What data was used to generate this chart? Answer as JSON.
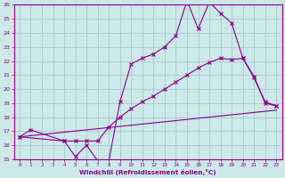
{
  "xlabel": "Windchill (Refroidissement éolien,°C)",
  "bg_color": "#cce8e8",
  "line_color": "#880088",
  "grid_color": "#aacccc",
  "xlim": [
    -0.5,
    23.5
  ],
  "ylim": [
    15,
    26
  ],
  "xticks": [
    0,
    1,
    2,
    3,
    4,
    5,
    6,
    7,
    8,
    9,
    10,
    11,
    12,
    13,
    14,
    15,
    16,
    17,
    18,
    19,
    20,
    21,
    22,
    23
  ],
  "yticks": [
    15,
    16,
    17,
    18,
    19,
    20,
    21,
    22,
    23,
    24,
    25,
    26
  ],
  "line1_x": [
    0,
    1,
    4,
    5,
    6,
    7,
    8,
    9,
    10,
    11,
    12,
    13,
    14,
    15,
    16,
    17,
    18,
    19,
    20,
    21,
    22,
    23
  ],
  "line1_y": [
    16.6,
    17.1,
    16.3,
    15.2,
    16.0,
    14.9,
    14.9,
    19.1,
    21.8,
    22.2,
    22.5,
    23.0,
    23.8,
    26.3,
    24.3,
    26.2,
    25.4,
    24.7,
    22.2,
    20.8,
    19.1,
    18.8
  ],
  "line2_x": [
    0,
    4,
    5,
    6,
    7,
    8,
    9,
    10,
    11,
    12,
    13,
    14,
    15,
    16,
    17,
    18,
    19,
    20,
    21,
    22,
    23
  ],
  "line2_y": [
    16.6,
    16.3,
    16.3,
    16.3,
    16.3,
    17.3,
    18.0,
    18.6,
    19.1,
    19.5,
    20.0,
    20.5,
    21.0,
    21.5,
    21.9,
    22.2,
    22.1,
    22.2,
    20.9,
    19.0,
    18.8
  ],
  "line3_x": [
    0,
    23
  ],
  "line3_y": [
    16.6,
    18.5
  ]
}
